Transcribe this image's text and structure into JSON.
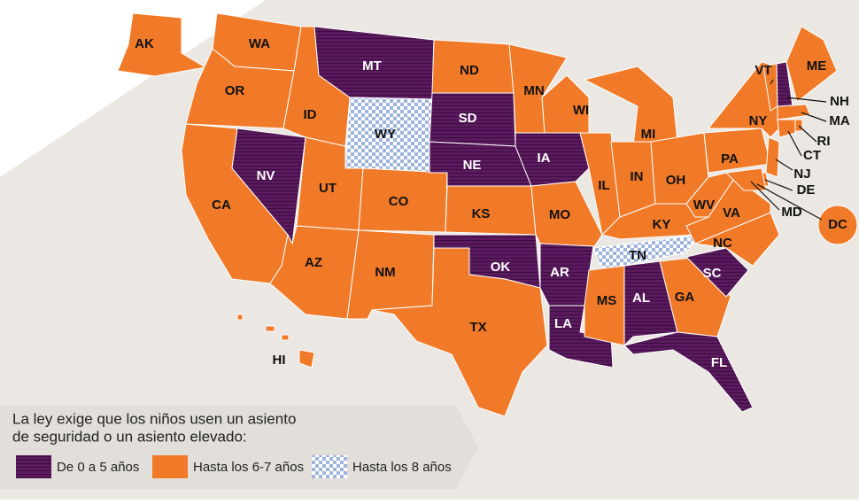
{
  "legend": {
    "title": [
      "La ley exige que los niños usen un asiento",
      "de seguridad o un asiento elevado:"
    ],
    "items": [
      {
        "label": "De 0 a 5 años",
        "color": "#5b1a5f",
        "pattern": "stripes"
      },
      {
        "label": "Hasta los 6-7 años",
        "color": "#f07a28",
        "pattern": "solid"
      },
      {
        "label": "Hasta los 8 años",
        "color": "#9fb4dc",
        "pattern": "checker"
      }
    ]
  },
  "states": [
    {
      "label": "AK",
      "group": 1
    },
    {
      "label": "WA",
      "group": 1
    },
    {
      "label": "OR",
      "group": 1
    },
    {
      "label": "CA",
      "group": 1
    },
    {
      "label": "NV",
      "group": 0
    },
    {
      "label": "ID",
      "group": 1
    },
    {
      "label": "MT",
      "group": 0
    },
    {
      "label": "WY",
      "group": 2
    },
    {
      "label": "UT",
      "group": 1
    },
    {
      "label": "CO",
      "group": 1
    },
    {
      "label": "AZ",
      "group": 1
    },
    {
      "label": "NM",
      "group": 1
    },
    {
      "label": "ND",
      "group": 1
    },
    {
      "label": "SD",
      "group": 0
    },
    {
      "label": "NE",
      "group": 0
    },
    {
      "label": "KS",
      "group": 1
    },
    {
      "label": "OK",
      "group": 0
    },
    {
      "label": "TX",
      "group": 1
    },
    {
      "label": "MN",
      "group": 1
    },
    {
      "label": "IA",
      "group": 0
    },
    {
      "label": "MO",
      "group": 1
    },
    {
      "label": "AR",
      "group": 0
    },
    {
      "label": "LA",
      "group": 0
    },
    {
      "label": "WI",
      "group": 1
    },
    {
      "label": "IL",
      "group": 1
    },
    {
      "label": "MI",
      "group": 1
    },
    {
      "label": "IN",
      "group": 1
    },
    {
      "label": "OH",
      "group": 1
    },
    {
      "label": "KY",
      "group": 1
    },
    {
      "label": "TN",
      "group": 2
    },
    {
      "label": "MS",
      "group": 1
    },
    {
      "label": "AL",
      "group": 0
    },
    {
      "label": "GA",
      "group": 1
    },
    {
      "label": "FL",
      "group": 0
    },
    {
      "label": "SC",
      "group": 0
    },
    {
      "label": "NC",
      "group": 1
    },
    {
      "label": "VA",
      "group": 1
    },
    {
      "label": "WV",
      "group": 1
    },
    {
      "label": "PA",
      "group": 1
    },
    {
      "label": "NY",
      "group": 1
    },
    {
      "label": "VT",
      "group": 1
    },
    {
      "label": "NH",
      "group": 0
    },
    {
      "label": "ME",
      "group": 1
    },
    {
      "label": "MA",
      "group": 1
    },
    {
      "label": "RI",
      "group": 1
    },
    {
      "label": "CT",
      "group": 1
    },
    {
      "label": "NJ",
      "group": 1
    },
    {
      "label": "DE",
      "group": 1
    },
    {
      "label": "MD",
      "group": 1
    },
    {
      "label": "DC",
      "group": 1
    },
    {
      "label": "HI",
      "group": 1
    }
  ]
}
